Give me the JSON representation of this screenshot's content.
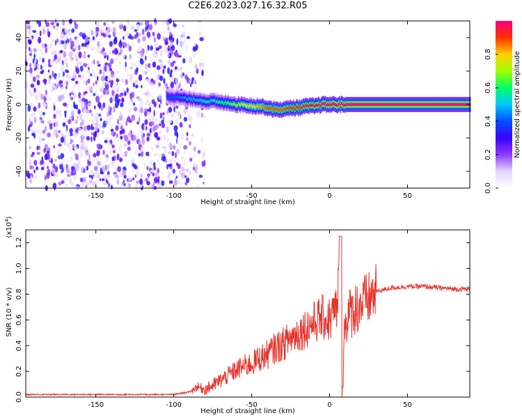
{
  "title": "C2E6.2023.027.16.32.R05",
  "colors": {
    "snr_line": "#e8322b",
    "axis": "#000000",
    "background": "#ffffff"
  },
  "chart_data": [
    {
      "type": "heatmap",
      "xlabel": "Height of straight line (km)",
      "ylabel": "Frequency (Hz)",
      "xlim": [
        -195,
        90
      ],
      "ylim": [
        -50,
        50
      ],
      "xticks": [
        -150,
        -100,
        -50,
        0,
        50
      ],
      "yticks": [
        -40,
        -20,
        0,
        20,
        40
      ],
      "colorbar": {
        "label": "Normalized spectral amplitude",
        "range": [
          0.0,
          1.0
        ],
        "ticks": [
          "0.0",
          "0.2",
          "0.4",
          "0.6",
          "0.8"
        ],
        "colormap": [
          "#ffffff",
          "#e6d4ff",
          "#8c3cff",
          "#3c00ff",
          "#0050ff",
          "#00c8ff",
          "#00ff66",
          "#a0ff00",
          "#ffd000",
          "#ff3000",
          "#ff0080"
        ]
      },
      "noise_region_km": [
        -195,
        -80
      ],
      "signal_trace": {
        "heights_km": [
          -105,
          -95,
          -90,
          -85,
          -80,
          -75,
          -70,
          -65,
          -60,
          -55,
          -50,
          -45,
          -40,
          -35,
          -30,
          -25,
          -20,
          -15,
          -10,
          -5,
          0,
          5,
          10,
          20,
          40,
          60,
          80,
          90
        ],
        "frequency_hz": [
          5,
          4,
          3,
          3,
          2,
          2,
          1,
          1,
          0,
          0,
          -1,
          -1,
          -2,
          -3,
          -3,
          -2,
          -2,
          -1,
          -1,
          0,
          0,
          0,
          0,
          0,
          0,
          0,
          0,
          0
        ],
        "amplitude": [
          0.3,
          0.35,
          0.4,
          0.4,
          0.45,
          0.45,
          0.5,
          0.55,
          0.6,
          0.65,
          0.7,
          0.75,
          0.8,
          0.8,
          0.8,
          0.82,
          0.85,
          0.88,
          0.9,
          0.92,
          0.95,
          0.95,
          0.95,
          0.95,
          0.95,
          0.95,
          0.95,
          0.95
        ]
      }
    },
    {
      "type": "line",
      "xlabel": "Height of straight line (km)",
      "ylabel": "SNR (10 * v/v)",
      "ylabel_multiplier": "(x10",
      "ylabel_exponent": "4",
      "ylabel_multiplier_close": ")",
      "xlim": [
        -195,
        90
      ],
      "ylim": [
        0,
        1.3
      ],
      "xticks": [
        -150,
        -100,
        -50,
        0,
        50
      ],
      "yticks": [
        "0.0",
        "0.2",
        "0.4",
        "0.6",
        "0.8",
        "1.0",
        "1.2"
      ],
      "series": [
        {
          "x": [
            -195,
            -180,
            -160,
            -140,
            -120,
            -100,
            -90,
            -85,
            -80,
            -75,
            -70,
            -65,
            -60,
            -55,
            -50,
            -45,
            -40,
            -35,
            -30,
            -25,
            -20,
            -15,
            -10,
            -5,
            0,
            5,
            7,
            8,
            10,
            15,
            20,
            25,
            30,
            40,
            50,
            60,
            70,
            80,
            90
          ],
          "y": [
            0.02,
            0.02,
            0.02,
            0.02,
            0.02,
            0.02,
            0.04,
            0.08,
            0.06,
            0.09,
            0.13,
            0.17,
            0.21,
            0.24,
            0.26,
            0.3,
            0.33,
            0.38,
            0.41,
            0.46,
            0.5,
            0.54,
            0.58,
            0.62,
            0.6,
            0.7,
            1.27,
            0.1,
            0.6,
            0.68,
            0.72,
            0.76,
            0.82,
            0.85,
            0.86,
            0.86,
            0.85,
            0.84,
            0.84
          ]
        }
      ]
    }
  ]
}
